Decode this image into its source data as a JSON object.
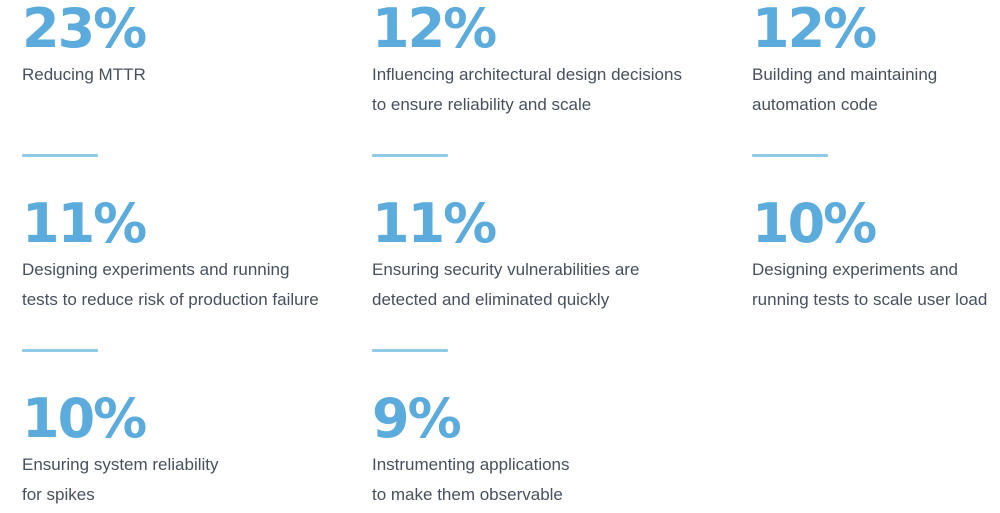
{
  "colors": {
    "accent_blue": "#5BACDC",
    "divider_blue": "#8FCAE9",
    "text_dark": "#46505E",
    "page_bg": "#FFFFFF"
  },
  "stats": [
    {
      "value": "23%",
      "lines": [
        "Reducing MTTR",
        ""
      ]
    },
    {
      "value": "12%",
      "lines": [
        "Influencing architectural design decisions",
        "to ensure reliability and scale"
      ]
    },
    {
      "value": "12%",
      "lines": [
        "Building and maintaining",
        "automation code"
      ]
    },
    {
      "value": "11%",
      "lines": [
        "Designing experiments and running",
        "tests to reduce risk of production failure"
      ]
    },
    {
      "value": "11%",
      "lines": [
        "Ensuring security vulnerabilities are",
        "detected and eliminated quickly"
      ]
    },
    {
      "value": "10%",
      "lines": [
        "Designing experiments and",
        "running tests to scale user load"
      ]
    },
    {
      "value": "10%",
      "lines": [
        "Ensuring system reliability",
        "for spikes"
      ]
    },
    {
      "value": "9%",
      "lines": [
        "Instrumenting applications",
        "to make them observable"
      ]
    }
  ],
  "chart_data": {
    "type": "table",
    "title": "",
    "unit": "%",
    "categories": [
      "Reducing MTTR",
      "Influencing architectural design decisions to ensure reliability and scale",
      "Building and maintaining automation code",
      "Designing experiments and running tests to reduce risk of production failure",
      "Ensuring security vulnerabilities are detected and eliminated quickly",
      "Designing experiments and running tests to scale user load",
      "Ensuring system reliability for spikes",
      "Instrumenting applications to make them observable"
    ],
    "values": [
      23,
      12,
      12,
      11,
      11,
      10,
      10,
      9
    ],
    "layout": "3-column grid of percentage stat blocks with short light-blue dividers between rows, white background, no axes, no legend"
  }
}
